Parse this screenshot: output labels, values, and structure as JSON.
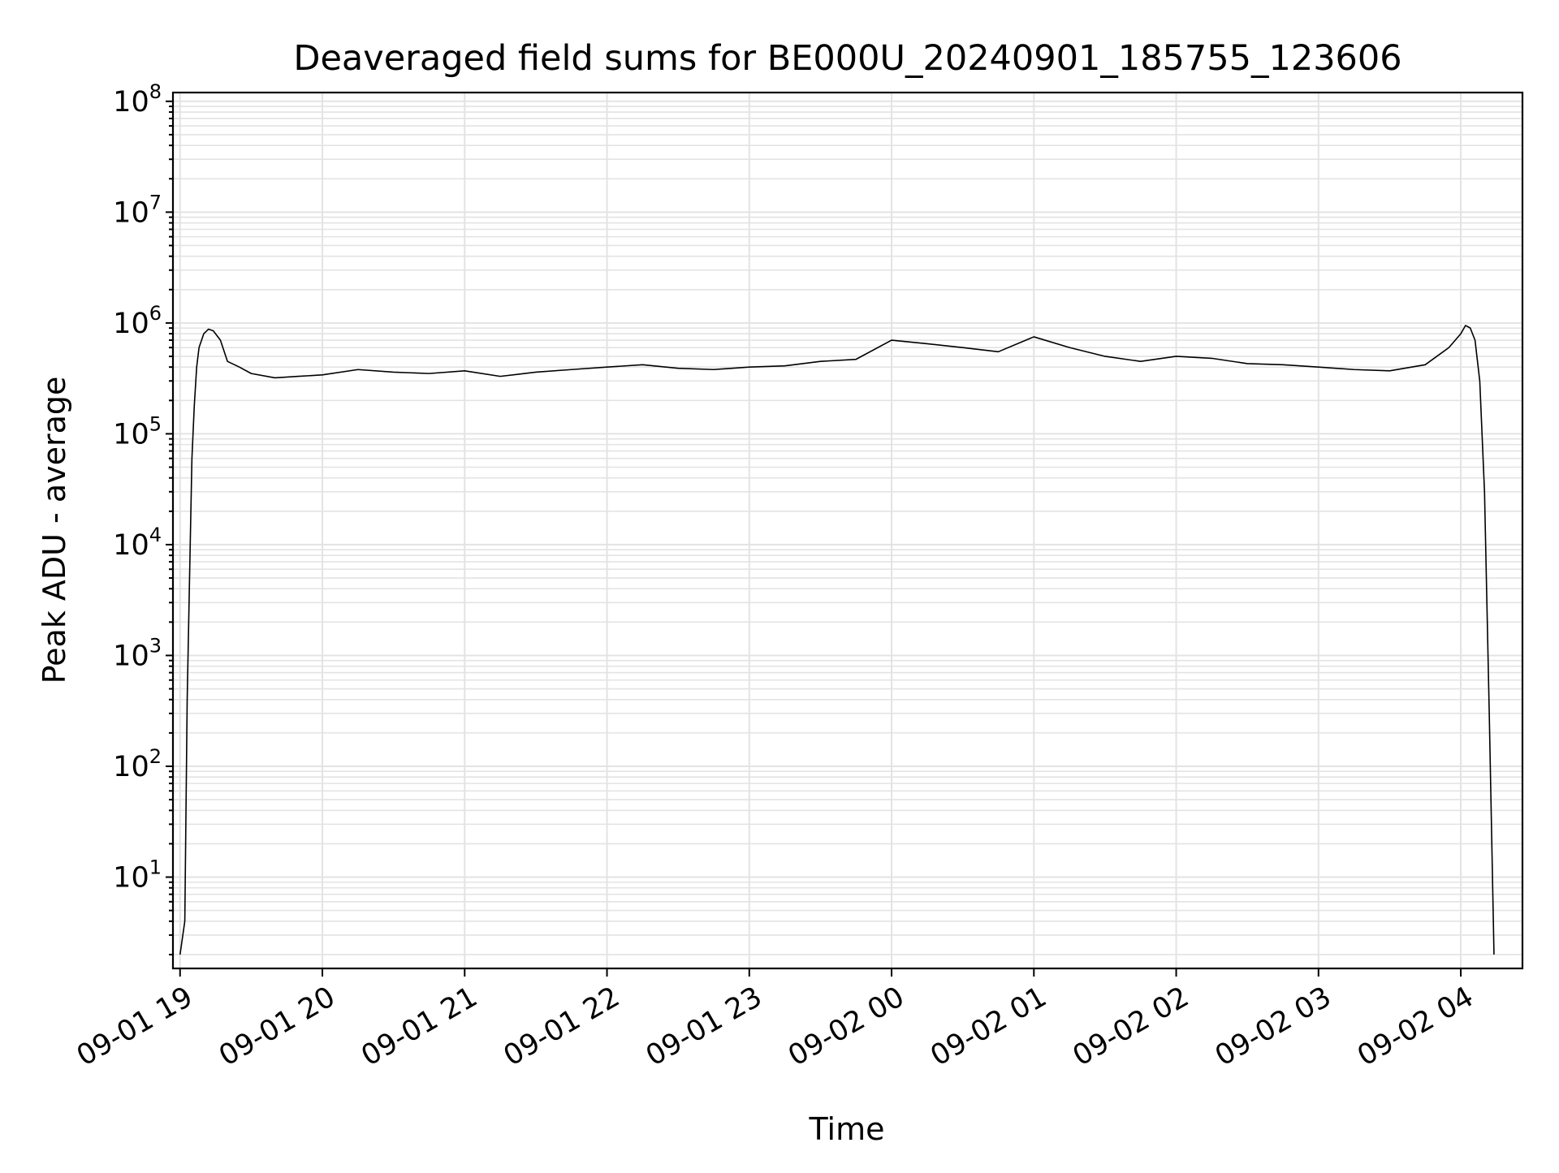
{
  "colors": {
    "line": "#000000",
    "grid": "#e3e3e3",
    "axes": "#000000",
    "background": "#ffffff"
  },
  "chart_data": {
    "type": "line",
    "title": "Deaveraged field sums for BE000U_20240901_185755_123606",
    "xlabel": "Time",
    "ylabel": "Peak ADU - average",
    "x_type": "datetime",
    "y_scale": "log",
    "xlim": [
      "2024-09-01 18:57:00",
      "2024-09-02 04:26:00"
    ],
    "ylim": [
      1.5,
      120000000
    ],
    "grid": true,
    "legend": "none",
    "x_ticks": [
      {
        "value": "2024-09-01 19:00",
        "label": "09-01 19"
      },
      {
        "value": "2024-09-01 20:00",
        "label": "09-01 20"
      },
      {
        "value": "2024-09-01 21:00",
        "label": "09-01 21"
      },
      {
        "value": "2024-09-01 22:00",
        "label": "09-01 22"
      },
      {
        "value": "2024-09-01 23:00",
        "label": "09-01 23"
      },
      {
        "value": "2024-09-02 00:00",
        "label": "09-02 00"
      },
      {
        "value": "2024-09-02 01:00",
        "label": "09-02 01"
      },
      {
        "value": "2024-09-02 02:00",
        "label": "09-02 02"
      },
      {
        "value": "2024-09-02 03:00",
        "label": "09-02 03"
      },
      {
        "value": "2024-09-02 04:00",
        "label": "09-02 04"
      }
    ],
    "y_ticks": [
      {
        "value": 10,
        "base": "10",
        "exp": "1"
      },
      {
        "value": 100,
        "base": "10",
        "exp": "2"
      },
      {
        "value": 1000,
        "base": "10",
        "exp": "3"
      },
      {
        "value": 10000,
        "base": "10",
        "exp": "4"
      },
      {
        "value": 100000,
        "base": "10",
        "exp": "5"
      },
      {
        "value": 1000000,
        "base": "10",
        "exp": "6"
      },
      {
        "value": 10000000,
        "base": "10",
        "exp": "7"
      },
      {
        "value": 100000000,
        "base": "10",
        "exp": "8"
      }
    ],
    "series": [
      {
        "x": [
          "2024-09-01 19:00",
          "2024-09-01 19:02",
          "2024-09-01 19:03",
          "2024-09-01 19:04",
          "2024-09-01 19:05",
          "2024-09-01 19:06",
          "2024-09-01 19:07",
          "2024-09-01 19:08",
          "2024-09-01 19:10",
          "2024-09-01 19:12",
          "2024-09-01 19:14",
          "2024-09-01 19:17",
          "2024-09-01 19:20",
          "2024-09-01 19:25",
          "2024-09-01 19:30",
          "2024-09-01 19:40",
          "2024-09-01 19:50",
          "2024-09-01 20:00",
          "2024-09-01 20:15",
          "2024-09-01 20:30",
          "2024-09-01 20:45",
          "2024-09-01 21:00",
          "2024-09-01 21:15",
          "2024-09-01 21:30",
          "2024-09-01 21:45",
          "2024-09-01 22:00",
          "2024-09-01 22:15",
          "2024-09-01 22:30",
          "2024-09-01 22:45",
          "2024-09-01 23:00",
          "2024-09-01 23:15",
          "2024-09-01 23:30",
          "2024-09-01 23:45",
          "2024-09-02 00:00",
          "2024-09-02 00:15",
          "2024-09-02 00:30",
          "2024-09-02 00:45",
          "2024-09-02 01:00",
          "2024-09-02 01:15",
          "2024-09-02 01:30",
          "2024-09-02 01:45",
          "2024-09-02 02:00",
          "2024-09-02 02:15",
          "2024-09-02 02:30",
          "2024-09-02 02:45",
          "2024-09-02 03:00",
          "2024-09-02 03:15",
          "2024-09-02 03:30",
          "2024-09-02 03:45",
          "2024-09-02 03:55",
          "2024-09-02 04:00",
          "2024-09-02 04:02",
          "2024-09-02 04:04",
          "2024-09-02 04:06",
          "2024-09-02 04:08",
          "2024-09-02 04:10",
          "2024-09-02 04:12",
          "2024-09-02 04:14"
        ],
        "y": [
          2,
          4,
          400,
          5000,
          60000,
          180000,
          400000,
          600000,
          800000,
          880000,
          850000,
          700000,
          450000,
          400000,
          350000,
          320000,
          330000,
          340000,
          380000,
          360000,
          350000,
          370000,
          330000,
          360000,
          380000,
          400000,
          420000,
          390000,
          380000,
          400000,
          410000,
          450000,
          470000,
          700000,
          650000,
          600000,
          550000,
          750000,
          600000,
          500000,
          450000,
          500000,
          480000,
          430000,
          420000,
          400000,
          380000,
          370000,
          420000,
          600000,
          800000,
          950000,
          900000,
          700000,
          300000,
          30000,
          300,
          2
        ]
      }
    ]
  }
}
